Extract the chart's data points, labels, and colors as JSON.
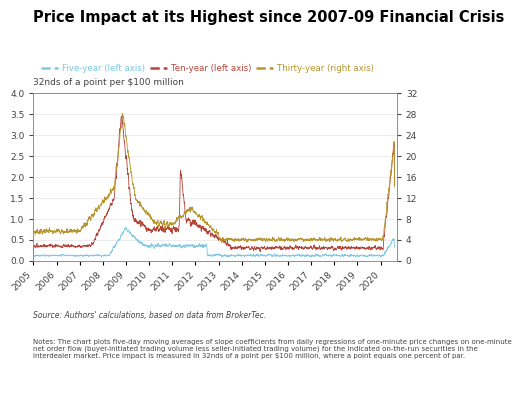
{
  "title": "Price Impact at its Highest since 2007-09 Financial Crisis",
  "ylabel_left": "32nds of a point per $100 million",
  "legend": [
    "Five-year (left axis)",
    "Ten-year (left axis)",
    "Thirty-year (right axis)"
  ],
  "colors": [
    "#7ec8e3",
    "#b5453a",
    "#b8952a"
  ],
  "ylim_left": [
    0,
    4.0
  ],
  "ylim_right": [
    0,
    32
  ],
  "yticks_left": [
    0.0,
    0.5,
    1.0,
    1.5,
    2.0,
    2.5,
    3.0,
    3.5,
    4.0
  ],
  "yticks_right": [
    0,
    4,
    8,
    12,
    16,
    20,
    24,
    28,
    32
  ],
  "source_text": "Source: Authors' calculations, based on data from BrokerTec.",
  "notes_text": "Notes: The chart plots five-day moving averages of slope coefficients from daily regressions of one-minute price changes on one-minute net order flow (buyer-initiated trading volume less seller-initiated trading volume) for the indicated on-the-run securities in the interdealer market. Price impact is measured in 32nds of a point per $100 million, where a point equals one percent of par.",
  "background_color": "#ffffff",
  "title_color": "#000000",
  "text_color": "#444444",
  "line_width": 0.6,
  "xtick_years": [
    2005,
    2006,
    2007,
    2008,
    2009,
    2010,
    2011,
    2012,
    2013,
    2014,
    2015,
    2016,
    2017,
    2018,
    2019,
    2020
  ],
  "xlim": [
    2005.0,
    2020.7
  ]
}
